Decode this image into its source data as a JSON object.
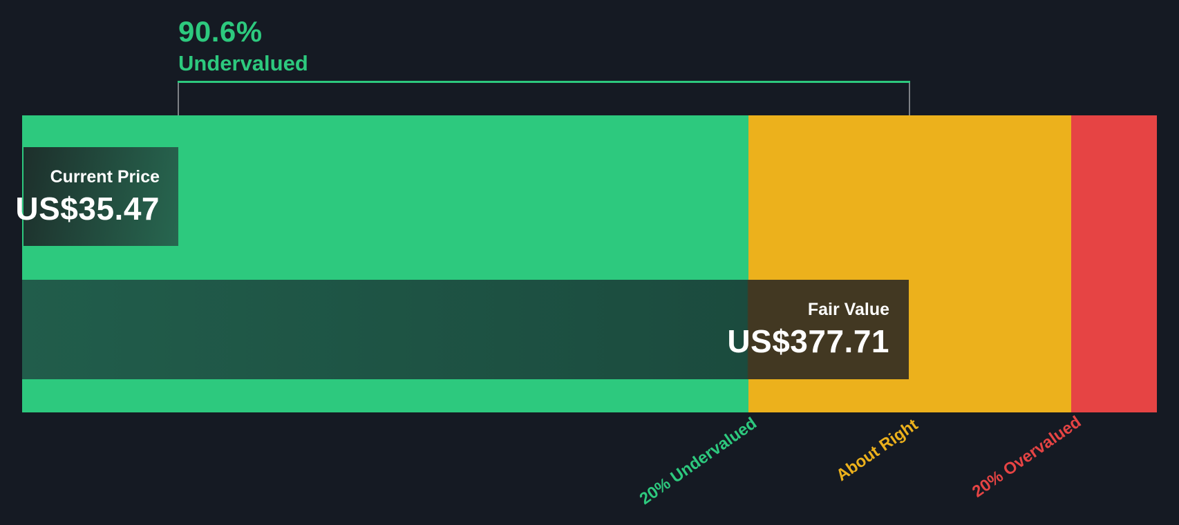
{
  "colors": {
    "bg": "#151a23",
    "green": "#2dc97e",
    "amber": "#ecb11c",
    "red": "#e64444",
    "band-green-left": "#215d4b",
    "band-green-right": "#1b4b3e",
    "band-olive": "#423822",
    "pricebox-left": "#1d2f2b",
    "pricebox-right": "#276750",
    "text-white": "#ffffff"
  },
  "headline": {
    "percent": "90.6%",
    "label": "Undervalued"
  },
  "current_price": {
    "label": "Current Price",
    "value": "US$35.47"
  },
  "fair_value": {
    "label": "Fair Value",
    "value": "US$377.71"
  },
  "axis_labels": {
    "undervalued": "20% Undervalued",
    "about_right": "About Right",
    "overvalued": "20% Overvalued"
  },
  "chart_data": {
    "type": "bar",
    "subtype": "fair-value-gauge",
    "title": "90.6% Undervalued",
    "currency": "US$",
    "current_price": 35.47,
    "fair_value": 377.71,
    "discount_percent": 90.6,
    "zones": [
      {
        "label": "20% Undervalued",
        "color": "#2dc97e",
        "fraction_of_bar": 0.64
      },
      {
        "label": "About Right",
        "color": "#ecb11c",
        "fraction_of_bar": 0.285
      },
      {
        "label": "20% Overvalued",
        "color": "#e64444",
        "fraction_of_bar": 0.075
      }
    ],
    "legend_position": "below, rotated -35deg at zone boundaries",
    "grid": false
  }
}
